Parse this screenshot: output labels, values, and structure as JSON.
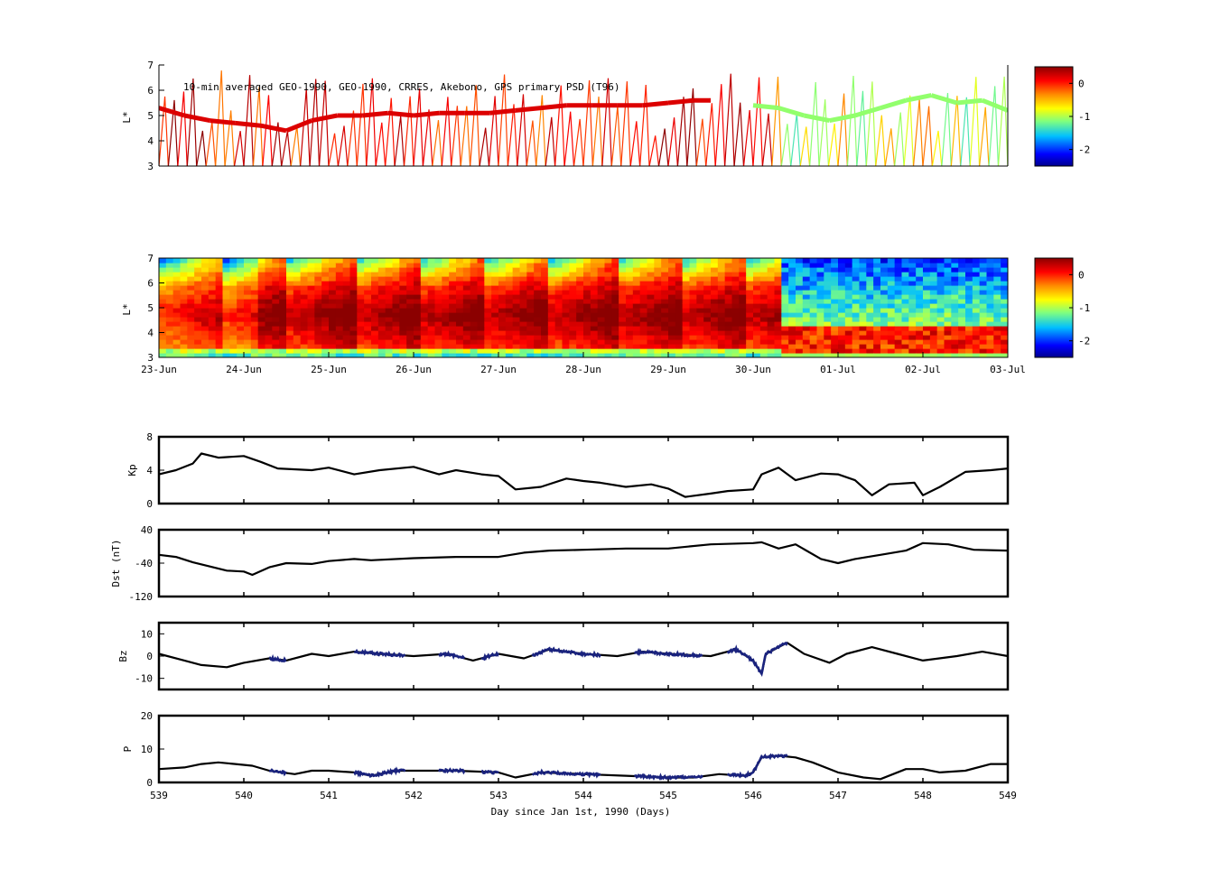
{
  "figure": {
    "title": "10-min averaged GEO-1990, GEO-1990, CRRES, Akebono, GPS  primary PSD (T96)"
  },
  "colors": {
    "line": "#000000",
    "highlight": "#1a237e",
    "colormap": [
      "#00008f",
      "#0000ff",
      "#00bfff",
      "#7fff7f",
      "#ffff00",
      "#ff8c00",
      "#ff0000",
      "#8b0000"
    ]
  },
  "chart_data": [
    {
      "type": "scatter",
      "name": "psd-orbit-tracks",
      "ylabel": "L*",
      "ylim": [
        3,
        7
      ],
      "yticks": [
        "3",
        "4",
        "5",
        "6",
        "7"
      ],
      "colorbar": {
        "ticks": [
          "0",
          "-1",
          "-2"
        ],
        "range": [
          -2.5,
          0.5
        ]
      },
      "x_days": [
        539,
        549
      ],
      "primary_track": {
        "x": [
          539.0,
          539.3,
          539.6,
          539.9,
          540.2,
          540.5,
          540.8,
          541.1,
          541.4,
          541.7,
          542.0,
          542.3,
          542.6,
          542.9,
          543.2,
          543.5,
          543.8,
          544.1,
          544.4,
          544.7,
          545.0,
          545.3,
          545.5
        ],
        "y": [
          5.3,
          5.0,
          4.8,
          4.7,
          4.6,
          4.4,
          4.8,
          5.0,
          5.0,
          5.1,
          5.0,
          5.1,
          5.1,
          5.1,
          5.2,
          5.3,
          5.4,
          5.4,
          5.4,
          5.4,
          5.5,
          5.6,
          5.6
        ]
      },
      "secondary_track": {
        "x": [
          546.0,
          546.3,
          546.6,
          546.9,
          547.2,
          547.5,
          547.8,
          548.1,
          548.4,
          548.7,
          549.0
        ],
        "y": [
          5.4,
          5.3,
          5.0,
          4.8,
          5.0,
          5.3,
          5.6,
          5.8,
          5.5,
          5.6,
          5.2
        ]
      }
    },
    {
      "type": "heatmap",
      "name": "psd-l-time",
      "ylabel": "L*",
      "ylim": [
        3,
        7
      ],
      "yticks": [
        "3",
        "4",
        "5",
        "6",
        "7"
      ],
      "x_dates": [
        "23-Jun",
        "24-Jun",
        "25-Jun",
        "26-Jun",
        "27-Jun",
        "28-Jun",
        "29-Jun",
        "30-Jun",
        "01-Jul",
        "02-Jul",
        "03-Jul"
      ],
      "colorbar": {
        "ticks": [
          "0",
          "-1",
          "-2"
        ],
        "range": [
          -2.5,
          0.5
        ]
      },
      "regime_change_day": 546.3
    },
    {
      "type": "line",
      "ylabel": "Kp",
      "ylim": [
        0,
        8
      ],
      "yticks": [
        "0",
        "4",
        "8"
      ],
      "x": [
        539.0,
        539.2,
        539.4,
        539.5,
        539.7,
        540.0,
        540.2,
        540.4,
        540.8,
        541.0,
        541.3,
        541.6,
        542.0,
        542.3,
        542.5,
        542.8,
        543.0,
        543.2,
        543.5,
        543.8,
        544.0,
        544.2,
        544.5,
        544.8,
        545.0,
        545.2,
        545.5,
        545.7,
        546.0,
        546.1,
        546.3,
        546.5,
        546.8,
        547.0,
        547.2,
        547.4,
        547.6,
        547.9,
        548.0,
        548.2,
        548.5,
        548.8,
        549.0
      ],
      "y": [
        3.5,
        4.0,
        4.8,
        6.0,
        5.5,
        5.7,
        5.0,
        4.2,
        4.0,
        4.3,
        3.5,
        4.0,
        4.4,
        3.5,
        4.0,
        3.5,
        3.3,
        1.7,
        2.0,
        3.0,
        2.7,
        2.5,
        2.0,
        2.3,
        1.8,
        0.8,
        1.2,
        1.5,
        1.7,
        3.5,
        4.3,
        2.8,
        3.6,
        3.5,
        2.8,
        1.0,
        2.3,
        2.5,
        1.0,
        2.0,
        3.8,
        4.0,
        4.2
      ]
    },
    {
      "type": "line",
      "ylabel": "Dst (nT)",
      "ylim": [
        -120,
        40
      ],
      "yticks": [
        "-120",
        "-40",
        "40"
      ],
      "x": [
        539.0,
        539.2,
        539.4,
        539.6,
        539.8,
        540.0,
        540.1,
        540.3,
        540.5,
        540.8,
        541.0,
        541.3,
        541.5,
        542.0,
        542.5,
        543.0,
        543.3,
        543.6,
        544.0,
        544.5,
        545.0,
        545.5,
        546.0,
        546.1,
        546.3,
        546.5,
        546.8,
        547.0,
        547.2,
        547.5,
        547.8,
        548.0,
        548.3,
        548.6,
        549.0
      ],
      "y": [
        -20,
        -25,
        -38,
        -48,
        -58,
        -60,
        -68,
        -50,
        -40,
        -42,
        -35,
        -30,
        -33,
        -28,
        -25,
        -25,
        -15,
        -10,
        -8,
        -5,
        -5,
        5,
        8,
        10,
        -5,
        5,
        -30,
        -40,
        -30,
        -20,
        -10,
        8,
        5,
        -8,
        -10
      ]
    },
    {
      "type": "line",
      "ylabel": "Bz",
      "ylim": [
        -15,
        15
      ],
      "yticks": [
        "-10",
        "0",
        "10"
      ],
      "x": [
        539.0,
        539.3,
        539.5,
        539.8,
        540.0,
        540.3,
        540.5,
        540.8,
        541.0,
        541.3,
        541.6,
        542.0,
        542.4,
        542.7,
        543.0,
        543.3,
        543.6,
        544.0,
        544.4,
        544.7,
        545.0,
        545.5,
        545.8,
        546.0,
        546.05,
        546.1,
        546.15,
        546.25,
        546.4,
        546.6,
        546.9,
        547.1,
        547.4,
        547.7,
        548.0,
        548.4,
        548.7,
        549.0
      ],
      "y": [
        1,
        -2,
        -4,
        -5,
        -3,
        -1,
        -2,
        1,
        0,
        2,
        1,
        0,
        1,
        -2,
        1,
        -1,
        3,
        1,
        0,
        2,
        1,
        0,
        3,
        -2,
        -5,
        -8,
        1,
        3,
        6,
        1,
        -3,
        1,
        4,
        1,
        -2,
        0,
        2,
        0
      ],
      "highlight_ranges": [
        [
          540.3,
          540.5
        ],
        [
          541.3,
          541.9
        ],
        [
          542.3,
          542.6
        ],
        [
          542.8,
          543.0
        ],
        [
          543.4,
          544.2
        ],
        [
          544.6,
          545.4
        ],
        [
          545.7,
          546.4
        ]
      ]
    },
    {
      "type": "line",
      "ylabel": "P",
      "xlabel": "Day since Jan 1st, 1990 (Days)",
      "ylim": [
        0,
        20
      ],
      "yticks": [
        "0",
        "10",
        "20"
      ],
      "xlim": [
        539,
        549
      ],
      "xticks": [
        "539",
        "540",
        "541",
        "542",
        "543",
        "544",
        "545",
        "546",
        "547",
        "548",
        "549"
      ],
      "x": [
        539.0,
        539.3,
        539.5,
        539.7,
        539.9,
        540.1,
        540.3,
        540.6,
        540.8,
        541.0,
        541.3,
        541.5,
        541.8,
        542.0,
        542.5,
        543.0,
        543.2,
        543.5,
        544.0,
        544.5,
        545.0,
        545.3,
        545.6,
        545.9,
        546.0,
        546.1,
        546.3,
        546.5,
        546.7,
        547.0,
        547.3,
        547.5,
        547.8,
        548.0,
        548.2,
        548.5,
        548.8,
        549.0
      ],
      "y": [
        4,
        4.5,
        5.5,
        6,
        5.5,
        5,
        3.5,
        2.5,
        3.5,
        3.5,
        3,
        2,
        3.5,
        3.5,
        3.5,
        3,
        1.5,
        3,
        2.5,
        2,
        1.5,
        1.5,
        2.5,
        2,
        3,
        7.5,
        8,
        7.5,
        6,
        3,
        1.5,
        1,
        4,
        4,
        3,
        3.5,
        5.5,
        5.5
      ],
      "highlight_ranges": [
        [
          540.3,
          540.5
        ],
        [
          541.3,
          541.9
        ],
        [
          542.3,
          542.6
        ],
        [
          542.8,
          543.0
        ],
        [
          543.4,
          544.2
        ],
        [
          544.6,
          545.4
        ],
        [
          545.7,
          546.4
        ]
      ]
    }
  ]
}
